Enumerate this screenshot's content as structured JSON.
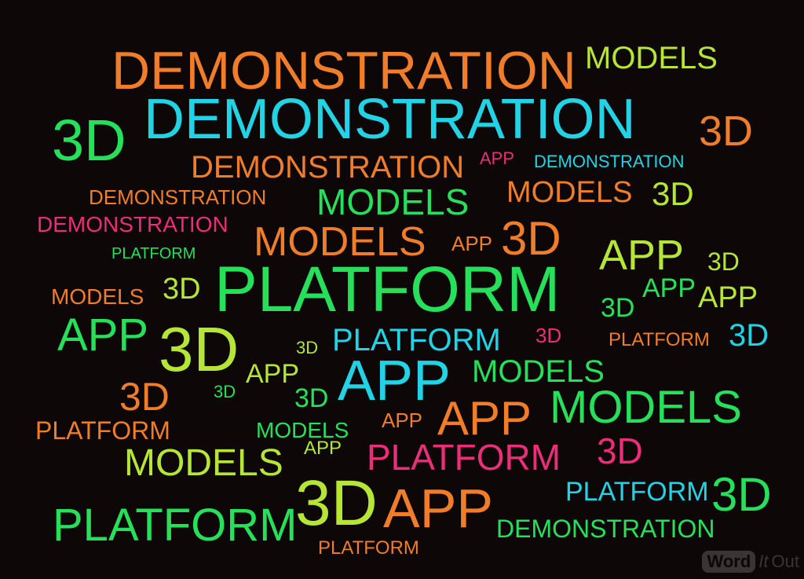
{
  "palette": {
    "orange": "#ef7d2a",
    "cyan": "#22d3e6",
    "green": "#27e05a",
    "lime": "#b5e635",
    "pink": "#ea2f7a",
    "background": "#0d0707"
  },
  "words": [
    {
      "text": "DEMONSTRATION",
      "color": "orange"
    },
    {
      "text": "MODELS",
      "color": "lime"
    },
    {
      "text": "3D",
      "color": "green"
    },
    {
      "text": "DEMONSTRATION",
      "color": "cyan"
    },
    {
      "text": "3D",
      "color": "orange"
    },
    {
      "text": "DEMONSTRATION",
      "color": "orange"
    },
    {
      "text": "APP",
      "color": "pink"
    },
    {
      "text": "DEMONSTRATION",
      "color": "cyan"
    },
    {
      "text": "DEMONSTRATION",
      "color": "orange"
    },
    {
      "text": "MODELS",
      "color": "green"
    },
    {
      "text": "MODELS",
      "color": "orange"
    },
    {
      "text": "3D",
      "color": "lime"
    },
    {
      "text": "DEMONSTRATION",
      "color": "pink"
    },
    {
      "text": "MODELS",
      "color": "orange"
    },
    {
      "text": "APP",
      "color": "orange"
    },
    {
      "text": "3D",
      "color": "orange"
    },
    {
      "text": "PLATFORM",
      "color": "green"
    },
    {
      "text": "APP",
      "color": "lime"
    },
    {
      "text": "3D",
      "color": "lime"
    },
    {
      "text": "MODELS",
      "color": "orange"
    },
    {
      "text": "3D",
      "color": "lime"
    },
    {
      "text": "PLATFORM",
      "color": "green"
    },
    {
      "text": "APP",
      "color": "green"
    },
    {
      "text": "APP",
      "color": "lime"
    },
    {
      "text": "3D",
      "color": "green"
    },
    {
      "text": "APP",
      "color": "green"
    },
    {
      "text": "3D",
      "color": "lime"
    },
    {
      "text": "3D",
      "color": "lime"
    },
    {
      "text": "PLATFORM",
      "color": "cyan"
    },
    {
      "text": "3D",
      "color": "pink"
    },
    {
      "text": "PLATFORM",
      "color": "orange"
    },
    {
      "text": "3D",
      "color": "cyan"
    },
    {
      "text": "APP",
      "color": "lime"
    },
    {
      "text": "APP",
      "color": "cyan"
    },
    {
      "text": "MODELS",
      "color": "green"
    },
    {
      "text": "3D",
      "color": "orange"
    },
    {
      "text": "3D",
      "color": "green"
    },
    {
      "text": "3D",
      "color": "green"
    },
    {
      "text": "MODELS",
      "color": "green"
    },
    {
      "text": "APP",
      "color": "orange"
    },
    {
      "text": "APP",
      "color": "orange"
    },
    {
      "text": "PLATFORM",
      "color": "orange"
    },
    {
      "text": "MODELS",
      "color": "green"
    },
    {
      "text": "APP",
      "color": "lime"
    },
    {
      "text": "PLATFORM",
      "color": "pink"
    },
    {
      "text": "3D",
      "color": "pink"
    },
    {
      "text": "MODELS",
      "color": "lime"
    },
    {
      "text": "3D",
      "color": "lime"
    },
    {
      "text": "APP",
      "color": "orange"
    },
    {
      "text": "PLATFORM",
      "color": "cyan"
    },
    {
      "text": "3D",
      "color": "green"
    },
    {
      "text": "PLATFORM",
      "color": "green"
    },
    {
      "text": "DEMONSTRATION",
      "color": "green"
    },
    {
      "text": "PLATFORM",
      "color": "orange"
    }
  ],
  "logo": {
    "word": "Word",
    "it": "It",
    "out": "Out"
  }
}
